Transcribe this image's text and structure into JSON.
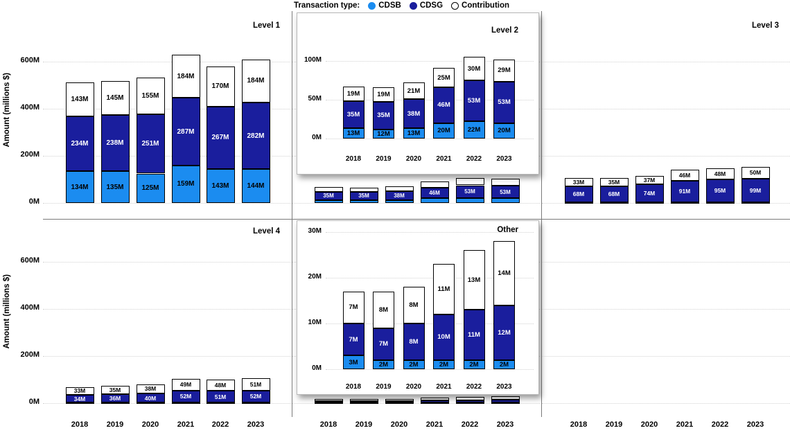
{
  "legend": {
    "title": "Transaction type:",
    "items": [
      {
        "label": "CDSB",
        "color": "#1b8cf0",
        "filled": true
      },
      {
        "label": "CDSG",
        "color": "#1a1e9d",
        "filled": true
      },
      {
        "label": "Contribution",
        "color": "#ffffff",
        "filled": false
      }
    ]
  },
  "y_axis_label": "Amount (millions $)",
  "unit": "M",
  "colors": {
    "cdsb": "#1b8cf0",
    "cdsg": "#1a1e9d",
    "contribution": "#ffffff",
    "segment_border": "#000000",
    "gridline": "#d2d2d2",
    "divider": "#7a7a7a"
  },
  "x_categories": [
    "2018",
    "2019",
    "2020",
    "2021",
    "2022",
    "2023"
  ],
  "y_ticks": [
    {
      "v": 0,
      "label": "0M"
    },
    {
      "v": 200,
      "label": "200M"
    },
    {
      "v": 400,
      "label": "400M"
    },
    {
      "v": 600,
      "label": "600M"
    }
  ],
  "chart_data": [
    {
      "type": "bar",
      "stacked": true,
      "title": "Level 1",
      "ylim": [
        0,
        700
      ],
      "series": [
        {
          "name": "CDSB",
          "values": [
            134,
            135,
            125,
            159,
            143,
            144
          ],
          "labeled": true
        },
        {
          "name": "CDSG",
          "values": [
            234,
            238,
            251,
            287,
            267,
            282
          ],
          "labeled": true
        },
        {
          "name": "Contribution",
          "values": [
            143,
            145,
            155,
            184,
            170,
            184
          ],
          "labeled": true
        }
      ]
    },
    {
      "type": "bar",
      "stacked": true,
      "title": "Level 2",
      "ylim": [
        0,
        700
      ],
      "series": [
        {
          "name": "CDSB",
          "values": [
            13,
            12,
            13,
            20,
            22,
            20
          ],
          "labeled": false
        },
        {
          "name": "CDSG",
          "values": [
            35,
            35,
            38,
            46,
            53,
            53
          ],
          "labeled": true
        },
        {
          "name": "Contribution",
          "values": [
            19,
            19,
            21,
            25,
            30,
            29
          ],
          "labeled": false
        }
      ],
      "inset": {
        "title_inside": true,
        "all_labeled": true,
        "ylim": [
          0,
          115
        ],
        "yticks": [
          {
            "v": 0,
            "label": "0M"
          },
          {
            "v": 50,
            "label": "50M"
          },
          {
            "v": 100,
            "label": "100M"
          }
        ]
      }
    },
    {
      "type": "bar",
      "stacked": true,
      "title": "Level 3",
      "ylim": [
        0,
        700
      ],
      "series": [
        {
          "name": "CDSB",
          "values": [
            4,
            4,
            4,
            4,
            4,
            4
          ],
          "labeled": false,
          "estimated": true
        },
        {
          "name": "CDSG",
          "values": [
            68,
            68,
            74,
            91,
            95,
            99
          ],
          "labeled": true
        },
        {
          "name": "Contribution",
          "values": [
            33,
            35,
            37,
            46,
            48,
            50
          ],
          "labeled": true
        }
      ]
    },
    {
      "type": "bar",
      "stacked": true,
      "title": "Level 4",
      "ylim": [
        0,
        700
      ],
      "series": [
        {
          "name": "CDSB",
          "values": [
            2,
            2,
            2,
            2,
            2,
            2
          ],
          "labeled": false,
          "estimated": true
        },
        {
          "name": "CDSG",
          "values": [
            34,
            36,
            40,
            52,
            51,
            52
          ],
          "labeled": true
        },
        {
          "name": "Contribution",
          "values": [
            33,
            35,
            38,
            49,
            48,
            51
          ],
          "labeled": true
        }
      ]
    },
    {
      "type": "bar",
      "stacked": true,
      "title": "Other",
      "ylim": [
        0,
        700
      ],
      "series": [
        {
          "name": "CDSB",
          "values": [
            3,
            2,
            2,
            2,
            2,
            2
          ],
          "labeled": false
        },
        {
          "name": "CDSG",
          "values": [
            7,
            7,
            8,
            10,
            11,
            12
          ],
          "labeled": false
        },
        {
          "name": "Contribution",
          "values": [
            7,
            8,
            8,
            11,
            13,
            14
          ],
          "labeled": false
        }
      ],
      "inset": {
        "title_inside": true,
        "all_labeled": true,
        "ylim": [
          0,
          33
        ],
        "yticks": [
          {
            "v": 0,
            "label": "0M"
          },
          {
            "v": 10,
            "label": "10M"
          },
          {
            "v": 20,
            "label": "20M"
          },
          {
            "v": 30,
            "label": "30M"
          }
        ]
      }
    },
    {
      "type": "bar",
      "stacked": true,
      "title": "",
      "empty": true,
      "ylim": [
        0,
        700
      ],
      "series": []
    }
  ]
}
